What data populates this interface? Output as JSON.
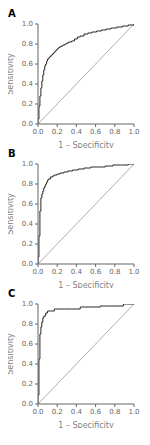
{
  "chart_data": [
    {
      "type": "line",
      "title": "A",
      "xlabel": "1 – Specificity",
      "ylabel": "Sensitivity",
      "xlim": [
        0.0,
        1.0
      ],
      "ylim": [
        0.0,
        1.0
      ],
      "xticks": [
        {
          "value": 0.0,
          "label": "0.0"
        },
        {
          "value": 0.2,
          "label": "0.2"
        },
        {
          "value": 0.4,
          "label": "0.4"
        },
        {
          "value": 0.6,
          "label": "0.6"
        },
        {
          "value": 0.8,
          "label": "0.8"
        },
        {
          "value": 1.0,
          "label": "1.0"
        }
      ],
      "yticks": [
        {
          "value": 0.0,
          "label": "0.0"
        },
        {
          "value": 0.2,
          "label": "0.2"
        },
        {
          "value": 0.4,
          "label": "0.4"
        },
        {
          "value": 0.6,
          "label": "0.6"
        },
        {
          "value": 0.8,
          "label": "0.8"
        },
        {
          "value": 1.0,
          "label": "1.0"
        }
      ],
      "series": [
        {
          "type": "line",
          "color": "#999999",
          "x": [
            0,
            1
          ],
          "values": [
            0,
            1
          ]
        },
        {
          "type": "step",
          "color": "#2a2a2a",
          "x": [
            0.0,
            0.0,
            0.01,
            0.01,
            0.02,
            0.02,
            0.03,
            0.03,
            0.04,
            0.04,
            0.05,
            0.05,
            0.06,
            0.06,
            0.07,
            0.07,
            0.08,
            0.09,
            0.09,
            0.1,
            0.1,
            0.11,
            0.12,
            0.13,
            0.14,
            0.15,
            0.16,
            0.17,
            0.18,
            0.19,
            0.2,
            0.21,
            0.22,
            0.24,
            0.26,
            0.28,
            0.3,
            0.32,
            0.35,
            0.38,
            0.41,
            0.44,
            0.48,
            0.52,
            0.56,
            0.61,
            0.66,
            0.71,
            0.76,
            0.82,
            0.88,
            0.94,
            1.0
          ],
          "values": [
            0.0,
            0.05,
            0.1,
            0.18,
            0.22,
            0.28,
            0.32,
            0.36,
            0.4,
            0.43,
            0.46,
            0.49,
            0.52,
            0.54,
            0.56,
            0.58,
            0.6,
            0.62,
            0.63,
            0.64,
            0.65,
            0.66,
            0.67,
            0.68,
            0.69,
            0.7,
            0.71,
            0.72,
            0.73,
            0.74,
            0.75,
            0.76,
            0.77,
            0.78,
            0.79,
            0.8,
            0.81,
            0.82,
            0.83,
            0.85,
            0.87,
            0.88,
            0.9,
            0.91,
            0.92,
            0.93,
            0.94,
            0.95,
            0.96,
            0.97,
            0.98,
            0.99,
            1.0
          ]
        }
      ]
    },
    {
      "type": "line",
      "title": "B",
      "xlabel": "1 – Specificity",
      "ylabel": "Sensitivity",
      "xlim": [
        0.0,
        1.0
      ],
      "ylim": [
        0.0,
        1.0
      ],
      "xticks": [
        {
          "value": 0.0,
          "label": "0.0"
        },
        {
          "value": 0.2,
          "label": "0.2"
        },
        {
          "value": 0.4,
          "label": "0.4"
        },
        {
          "value": 0.6,
          "label": "0.6"
        },
        {
          "value": 0.8,
          "label": "0.8"
        },
        {
          "value": 1.0,
          "label": "1.0"
        }
      ],
      "yticks": [
        {
          "value": 0.0,
          "label": "0.0"
        },
        {
          "value": 0.2,
          "label": "0.2"
        },
        {
          "value": 0.4,
          "label": "0.4"
        },
        {
          "value": 0.6,
          "label": "0.6"
        },
        {
          "value": 0.8,
          "label": "0.8"
        },
        {
          "value": 1.0,
          "label": "1.0"
        }
      ],
      "series": [
        {
          "type": "line",
          "color": "#999999",
          "x": [
            0,
            1
          ],
          "values": [
            0,
            1
          ]
        },
        {
          "type": "step",
          "color": "#2a2a2a",
          "x": [
            0.0,
            0.0,
            0.01,
            0.01,
            0.02,
            0.02,
            0.03,
            0.03,
            0.04,
            0.05,
            0.06,
            0.07,
            0.08,
            0.09,
            0.1,
            0.11,
            0.13,
            0.15,
            0.17,
            0.2,
            0.23,
            0.27,
            0.31,
            0.36,
            0.42,
            0.48,
            0.55,
            0.62,
            0.7,
            0.78,
            0.87,
            0.94,
            1.0
          ],
          "values": [
            0.0,
            0.07,
            0.14,
            0.28,
            0.42,
            0.53,
            0.6,
            0.66,
            0.7,
            0.73,
            0.76,
            0.78,
            0.8,
            0.82,
            0.84,
            0.85,
            0.87,
            0.88,
            0.89,
            0.9,
            0.91,
            0.92,
            0.93,
            0.94,
            0.95,
            0.96,
            0.97,
            0.97,
            0.98,
            0.99,
            0.99,
            1.0,
            1.0
          ]
        }
      ]
    },
    {
      "type": "line",
      "title": "C",
      "xlabel": "1 – Specificity",
      "ylabel": "Sensitivity",
      "xlim": [
        0.0,
        1.0
      ],
      "ylim": [
        0.0,
        1.0
      ],
      "xticks": [
        {
          "value": 0.0,
          "label": "0.0"
        },
        {
          "value": 0.2,
          "label": "0.2"
        },
        {
          "value": 0.4,
          "label": "0.4"
        },
        {
          "value": 0.6,
          "label": "0.6"
        },
        {
          "value": 0.8,
          "label": "0.8"
        },
        {
          "value": 1.0,
          "label": "1.0"
        }
      ],
      "yticks": [
        {
          "value": 0.0,
          "label": "0.0"
        },
        {
          "value": 0.2,
          "label": "0.2"
        },
        {
          "value": 0.4,
          "label": "0.4"
        },
        {
          "value": 0.6,
          "label": "0.6"
        },
        {
          "value": 0.8,
          "label": "0.8"
        },
        {
          "value": 1.0,
          "label": "1.0"
        }
      ],
      "series": [
        {
          "type": "line",
          "color": "#999999",
          "x": [
            0,
            1
          ],
          "values": [
            0,
            1
          ]
        },
        {
          "type": "step",
          "color": "#2a2a2a",
          "x": [
            0.0,
            0.0,
            0.01,
            0.01,
            0.02,
            0.02,
            0.03,
            0.04,
            0.05,
            0.06,
            0.08,
            0.1,
            0.13,
            0.17,
            0.22,
            0.28,
            0.35,
            0.44,
            0.54,
            0.65,
            0.77,
            0.89,
            1.0
          ],
          "values": [
            0.0,
            0.09,
            0.2,
            0.45,
            0.59,
            0.7,
            0.77,
            0.82,
            0.86,
            0.88,
            0.91,
            0.93,
            0.93,
            0.95,
            0.95,
            0.95,
            0.95,
            0.97,
            0.97,
            0.98,
            0.98,
            1.0,
            1.0
          ]
        }
      ]
    }
  ]
}
